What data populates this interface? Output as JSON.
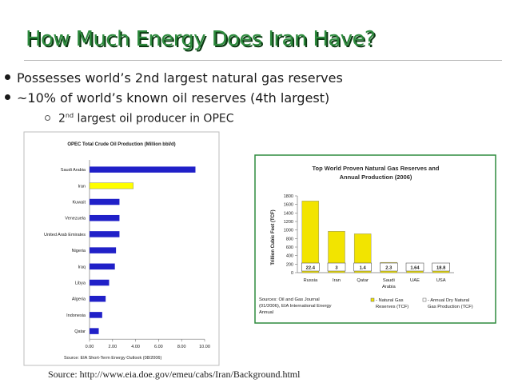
{
  "slide": {
    "title": "How Much Energy Does Iran Have?",
    "bullets": [
      "Possesses world’s 2nd largest natural gas reserves",
      "~10% of world’s known oil reserves (4th largest)"
    ],
    "sub_bullet": {
      "prefix": "2",
      "superscript": "nd",
      "text": " largest oil producer in OPEC"
    },
    "source": "Source: http://www.eia.doe.gov/emeu/cabs/Iran/Background.html"
  },
  "colors": {
    "title": "#2e8b3e",
    "bar_blue": "#2020c8",
    "bar_yellow": "#ffff00",
    "frame_green": "#2e8b3e",
    "gas_yellow": "#f2e400"
  },
  "chart_data": [
    {
      "type": "bar",
      "orientation": "horizontal",
      "title": "OPEC Total Crude Oil Production (Million bbl/d)",
      "categories": [
        "Saudi Arabia",
        "Iran",
        "Kuwait",
        "Venezuela",
        "United Arab Emirates",
        "Nigeria",
        "Iraq",
        "Libya",
        "Algeria",
        "Indonesia",
        "Qatar"
      ],
      "values": [
        9.2,
        3.8,
        2.6,
        2.6,
        2.6,
        2.3,
        2.2,
        1.7,
        1.4,
        1.1,
        0.8
      ],
      "highlight": "Iran",
      "xlim": [
        0,
        10
      ],
      "xticks": [
        "0.00",
        "2.00",
        "4.00",
        "6.00",
        "8.00",
        "10.00"
      ],
      "note": "Source: EIA Short-Term Energy Outlook (08/2006)"
    },
    {
      "type": "bar",
      "title": "Top World Proven Natural Gas Reserves and Annual Production (2006)",
      "ylabel": "Trillion Cubic Feet (TCF)",
      "categories": [
        "Russia",
        "Iran",
        "Qatar",
        "Saudi Arabia",
        "UAE",
        "USA"
      ],
      "series": [
        {
          "name": "- Natural Gas Reserves (TCF)",
          "values": [
            1680,
            971,
            911,
            241,
            214,
            193
          ]
        }
      ],
      "production_labels": [
        "22.4",
        "3",
        "1.4",
        "2.3",
        "1.64",
        "18.8"
      ],
      "ylim": [
        0,
        1800
      ],
      "yticks": [
        "0",
        "200",
        "400",
        "600",
        "800",
        "1000",
        "1200",
        "1400",
        "1600",
        "1800"
      ],
      "legend": {
        "reserves": "- Natural Gas Reserves (TCF)",
        "production": "- Annual Dry Natural Gas Production (TCF)"
      },
      "sources": "Sources: Oil and Gas Journal (01/2006), EIA International Energy Annual"
    }
  ]
}
